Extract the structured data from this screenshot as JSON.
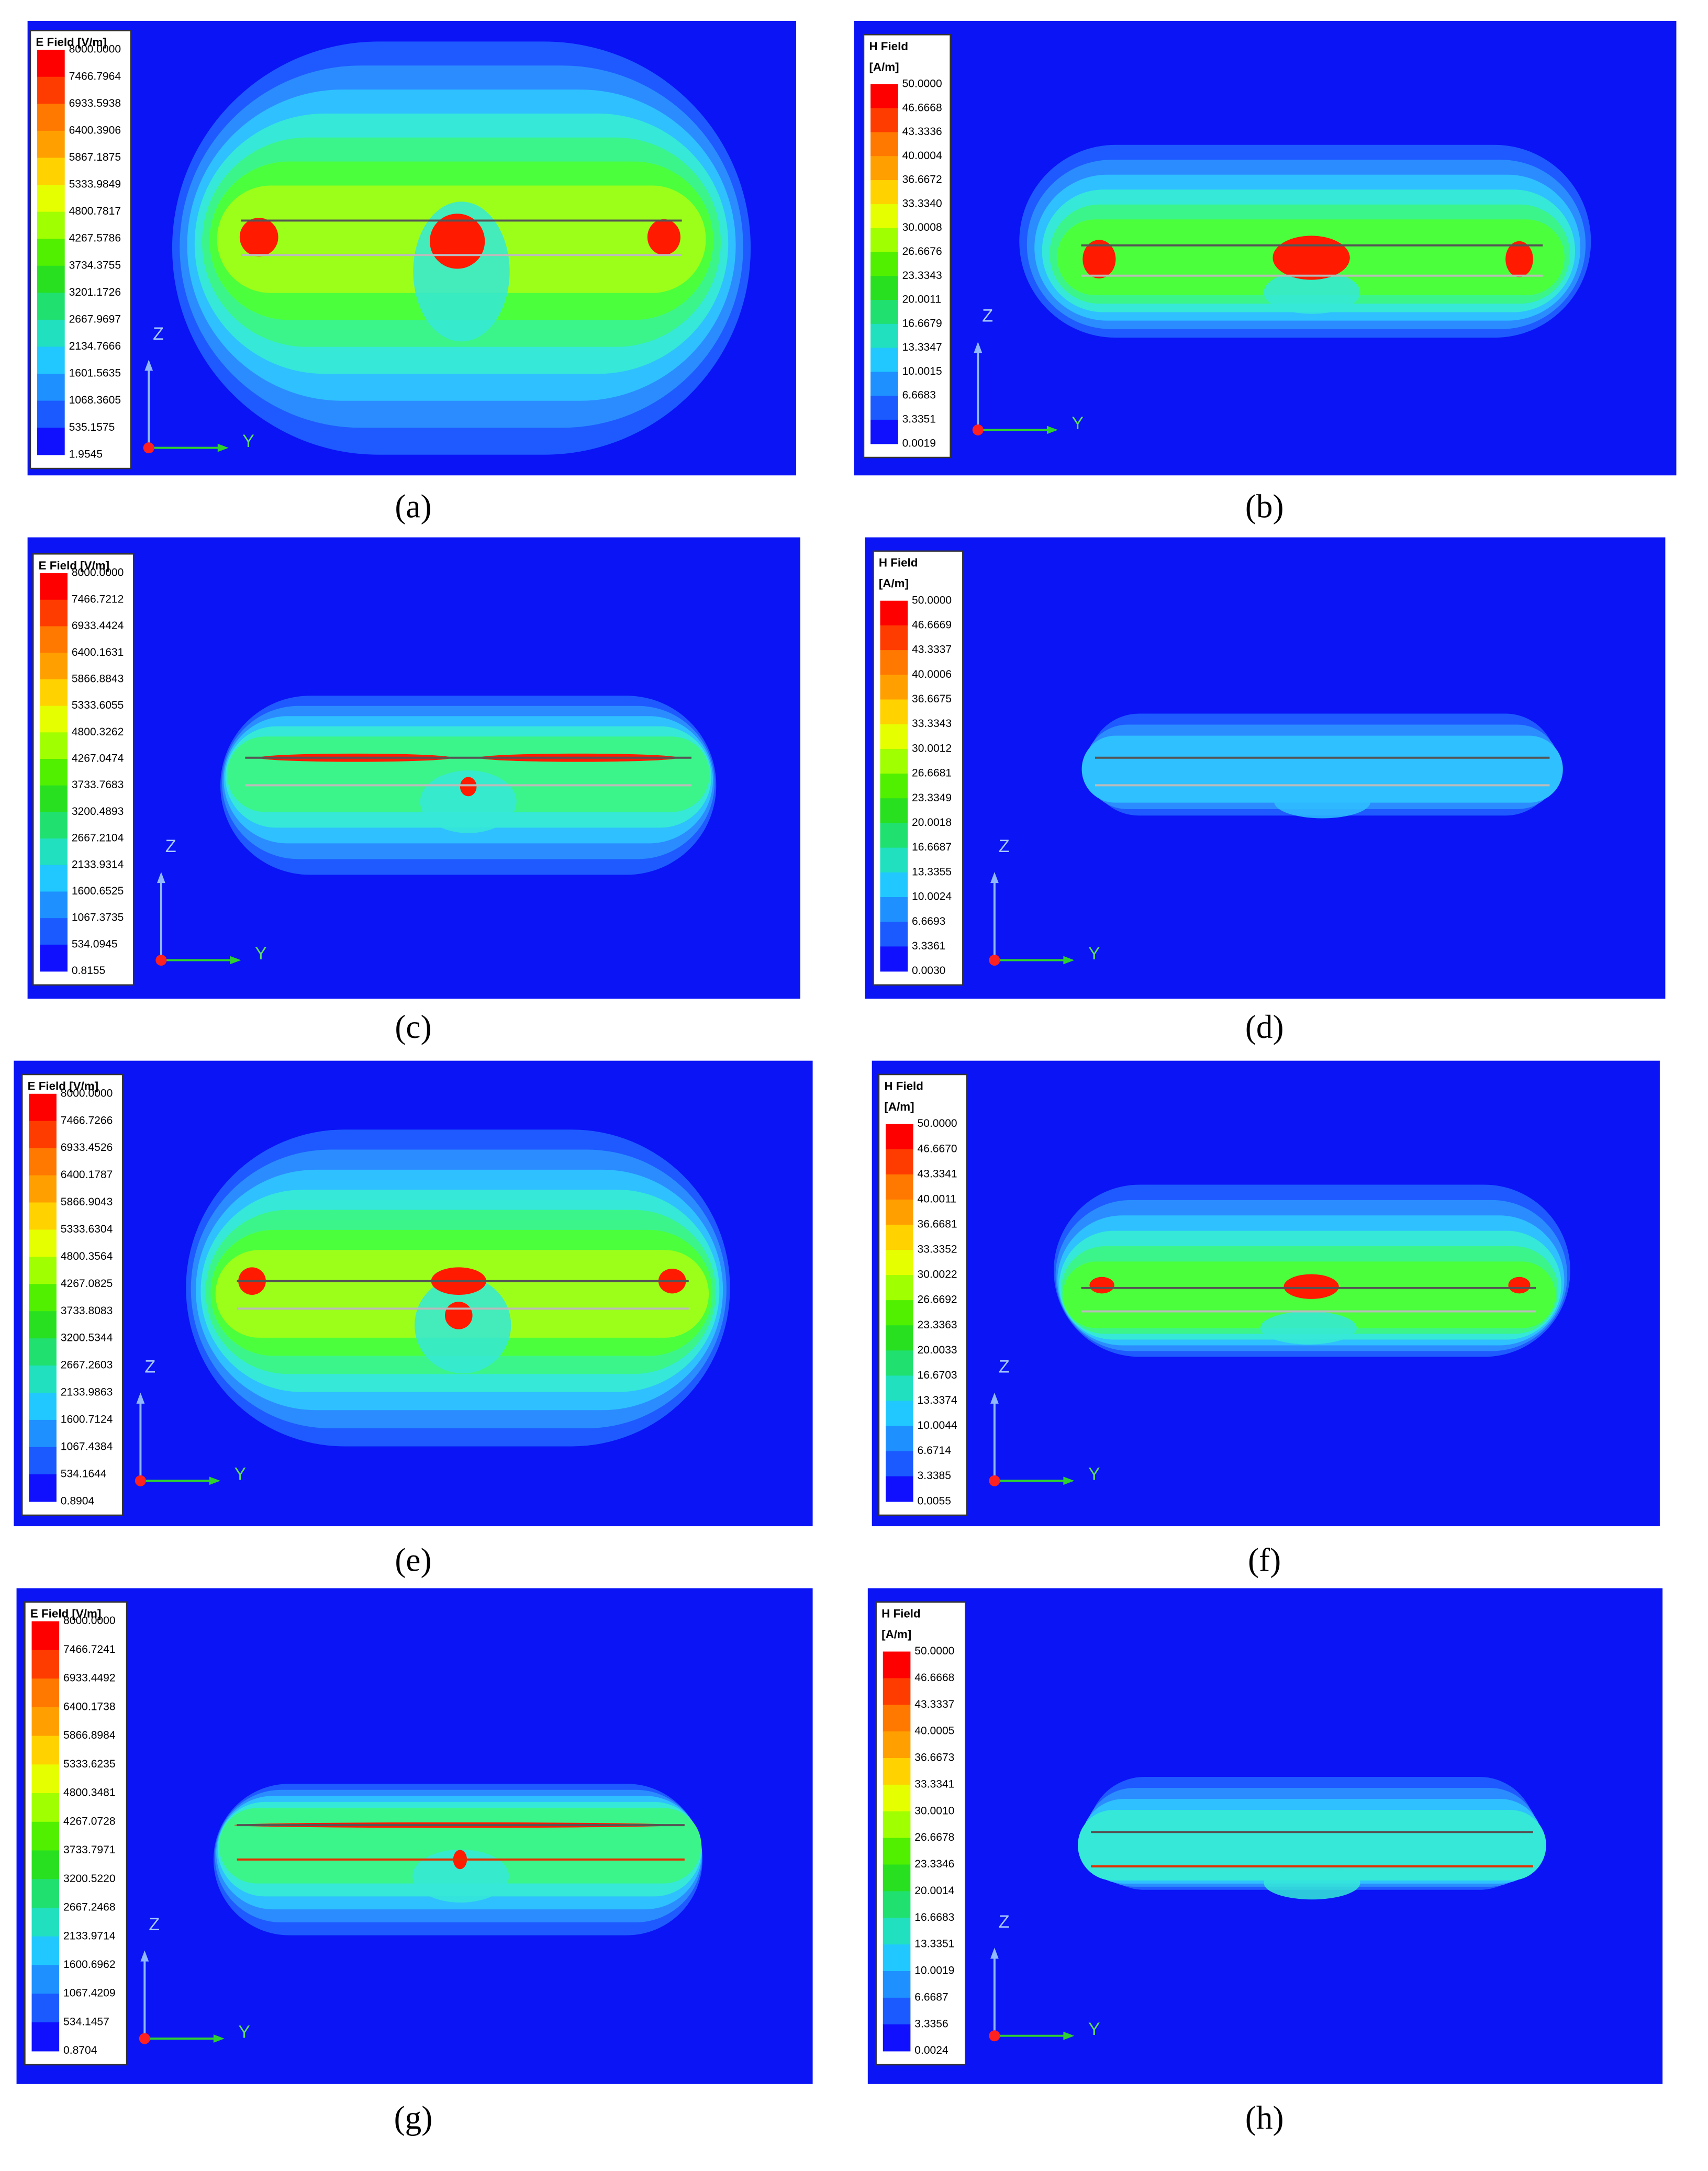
{
  "panels": [
    {
      "legend_title": "E Field [V/m]",
      "legend_labels": [
        "8000.0000",
        "7466.7964",
        "6933.5938",
        "6400.3906",
        "5867.1875",
        "5333.9849",
        "4800.7817",
        "4267.5786",
        "3734.3755",
        "3201.1726",
        "2667.9697",
        "2134.7666",
        "1601.5635",
        "1068.3605",
        "535.1575",
        "1.9545"
      ],
      "axis_z": "Z",
      "axis_y": "Y",
      "caption": "(a)"
    },
    {
      "legend_title": "H Field",
      "legend_unit": "[A/m]",
      "legend_labels": [
        "50.0000",
        "46.6668",
        "43.3336",
        "40.0004",
        "36.6672",
        "33.3340",
        "30.0008",
        "26.6676",
        "23.3343",
        "20.0011",
        "16.6679",
        "13.3347",
        "10.0015",
        "6.6683",
        "3.3351",
        "0.0019"
      ],
      "axis_z": "Z",
      "axis_y": "Y",
      "caption": "(b)"
    },
    {
      "legend_title": "E Field [V/m]",
      "legend_labels": [
        "8000.0000",
        "7466.7212",
        "6933.4424",
        "6400.1631",
        "5866.8843",
        "5333.6055",
        "4800.3262",
        "4267.0474",
        "3733.7683",
        "3200.4893",
        "2667.2104",
        "2133.9314",
        "1600.6525",
        "1067.3735",
        "534.0945",
        "0.8155"
      ],
      "axis_z": "Z",
      "axis_y": "Y",
      "caption": "(c)"
    },
    {
      "legend_title": "H Field",
      "legend_unit": "[A/m]",
      "legend_labels": [
        "50.0000",
        "46.6669",
        "43.3337",
        "40.0006",
        "36.6675",
        "33.3343",
        "30.0012",
        "26.6681",
        "23.3349",
        "20.0018",
        "16.6687",
        "13.3355",
        "10.0024",
        "6.6693",
        "3.3361",
        "0.0030"
      ],
      "axis_z": "Z",
      "axis_y": "Y",
      "caption": "(d)"
    },
    {
      "legend_title": "E Field [V/m]",
      "legend_labels": [
        "8000.0000",
        "7466.7266",
        "6933.4526",
        "6400.1787",
        "5866.9043",
        "5333.6304",
        "4800.3564",
        "4267.0825",
        "3733.8083",
        "3200.5344",
        "2667.2603",
        "2133.9863",
        "1600.7124",
        "1067.4384",
        "534.1644",
        "0.8904"
      ],
      "axis_z": "Z",
      "axis_y": "Y",
      "caption": "(e)"
    },
    {
      "legend_title": "H Field",
      "legend_unit": "[A/m]",
      "legend_labels": [
        "50.0000",
        "46.6670",
        "43.3341",
        "40.0011",
        "36.6681",
        "33.3352",
        "30.0022",
        "26.6692",
        "23.3363",
        "20.0033",
        "16.6703",
        "13.3374",
        "10.0044",
        "6.6714",
        "3.3385",
        "0.0055"
      ],
      "axis_z": "Z",
      "axis_y": "Y",
      "caption": "(f)"
    },
    {
      "legend_title": "E Field [V/m]",
      "legend_labels": [
        "8000.0000",
        "7466.7241",
        "6933.4492",
        "6400.1738",
        "5866.8984",
        "5333.6235",
        "4800.3481",
        "4267.0728",
        "3733.7971",
        "3200.5220",
        "2667.2468",
        "2133.9714",
        "1600.6962",
        "1067.4209",
        "534.1457",
        "0.8704"
      ],
      "axis_z": "Z",
      "axis_y": "Y",
      "caption": "(g)"
    },
    {
      "legend_title": "H Field",
      "legend_unit": "[A/m]",
      "legend_labels": [
        "50.0000",
        "46.6668",
        "43.3337",
        "40.0005",
        "36.6673",
        "33.3341",
        "30.0010",
        "26.6678",
        "23.3346",
        "20.0014",
        "16.6683",
        "13.3351",
        "10.0019",
        "6.6687",
        "3.3356",
        "0.0024"
      ],
      "axis_z": "Z",
      "axis_y": "Y",
      "caption": "(h)"
    }
  ]
}
